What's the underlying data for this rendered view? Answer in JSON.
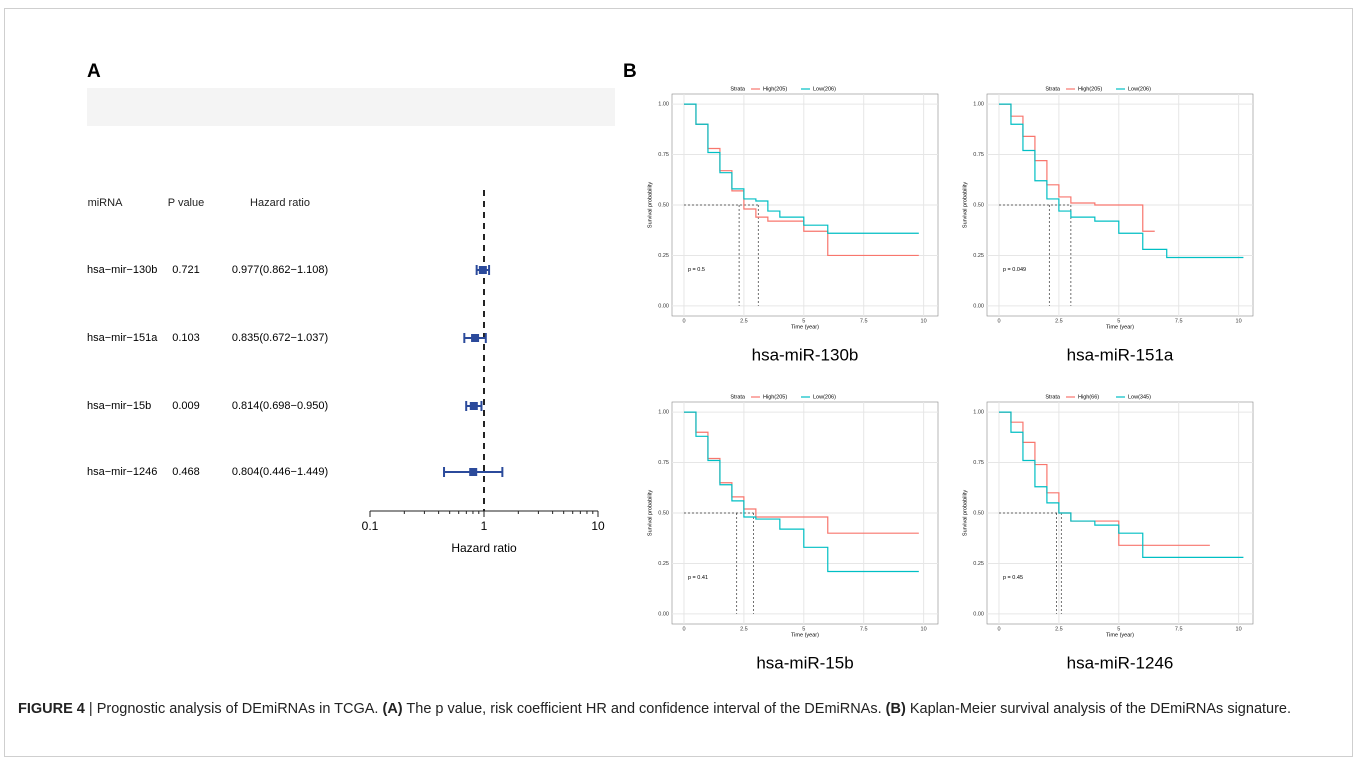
{
  "chart_data": [
    {
      "type": "forest",
      "panel_label": "A",
      "columns": [
        "miRNA",
        "P value",
        "Hazard ratio"
      ],
      "categories": [
        "hsa−mir−130b",
        "hsa−mir−151a",
        "hsa−mir−15b",
        "hsa−mir−1246"
      ],
      "p_values": [
        0.721,
        0.103,
        0.009,
        0.468
      ],
      "hr_text": [
        "0.977(0.862−1.108)",
        "0.835(0.672−1.037)",
        "0.814(0.698−0.950)",
        "0.804(0.446−1.449)"
      ],
      "values": [
        0.977,
        0.835,
        0.814,
        0.804
      ],
      "lower": [
        0.862,
        0.672,
        0.698,
        0.446
      ],
      "upper": [
        1.108,
        1.037,
        0.95,
        1.449
      ],
      "color": "#2b4a9b",
      "log_scale": true,
      "xlim": [
        0.1,
        10
      ],
      "xticks": [
        0.1,
        1,
        10
      ],
      "reference_line": 1,
      "xlabel": "Hazard ratio"
    },
    {
      "type": "km",
      "panel_label": "B",
      "title": "hsa-miR-130b",
      "legend_title": "Strata",
      "p_text": "p = 0.5",
      "xlabel": "Time (year)",
      "ylabel": "Survival probability",
      "x": [
        0,
        0.5,
        1,
        1.5,
        2,
        2.5,
        3,
        3.5,
        4,
        5,
        6,
        6.5,
        9.8
      ],
      "series": [
        {
          "name": "High(205)",
          "color": "#f8766d",
          "median": 2.3,
          "values": [
            1,
            0.9,
            0.78,
            0.67,
            0.57,
            0.48,
            0.44,
            0.42,
            0.42,
            0.37,
            0.25,
            0.25,
            0.25
          ]
        },
        {
          "name": "Low(206)",
          "color": "#00bfc4",
          "median": 3.1,
          "values": [
            1,
            0.9,
            0.76,
            0.66,
            0.58,
            0.53,
            0.52,
            0.47,
            0.44,
            0.4,
            0.36,
            0.36,
            0.36
          ]
        }
      ],
      "xlim": [
        -0.5,
        10.6
      ],
      "xticks": [
        0,
        2.5,
        5,
        7.5,
        10
      ],
      "ylim": [
        -0.05,
        1.05
      ],
      "yticks": [
        {
          "value": 0,
          "label": "0.00"
        },
        {
          "value": 0.25,
          "label": "0.25"
        },
        {
          "value": 0.5,
          "label": "0.50"
        },
        {
          "value": 0.75,
          "label": "0.75"
        },
        {
          "value": 1,
          "label": "1.00"
        }
      ],
      "grid": true
    },
    {
      "type": "km",
      "title": "hsa-miR-151a",
      "legend_title": "Strata",
      "p_text": "p = 0.049",
      "xlabel": "Time (year)",
      "ylabel": "Survival probability",
      "x": [
        0,
        0.5,
        1,
        1.5,
        2,
        2.5,
        3,
        4,
        5,
        6,
        6.5,
        7,
        8,
        10.2
      ],
      "series": [
        {
          "name": "High(205)",
          "color": "#f8766d",
          "median": 3.0,
          "values": [
            1,
            0.94,
            0.84,
            0.72,
            0.6,
            0.54,
            0.51,
            0.5,
            0.5,
            0.37,
            0.37,
            null,
            null,
            null
          ]
        },
        {
          "name": "Low(206)",
          "color": "#00bfc4",
          "median": 2.1,
          "values": [
            1,
            0.9,
            0.77,
            0.62,
            0.53,
            0.47,
            0.44,
            0.42,
            0.36,
            0.28,
            0.28,
            0.24,
            0.24,
            0.24
          ]
        }
      ],
      "xlim": [
        -0.5,
        10.6
      ],
      "xticks": [
        0,
        2.5,
        5,
        7.5,
        10
      ],
      "ylim": [
        -0.05,
        1.05
      ],
      "yticks": [
        {
          "value": 0,
          "label": "0.00"
        },
        {
          "value": 0.25,
          "label": "0.25"
        },
        {
          "value": 0.5,
          "label": "0.50"
        },
        {
          "value": 0.75,
          "label": "0.75"
        },
        {
          "value": 1,
          "label": "1.00"
        }
      ],
      "grid": true
    },
    {
      "type": "km",
      "title": "hsa-miR-15b",
      "legend_title": "Strata",
      "p_text": "p = 0.41",
      "xlabel": "Time (year)",
      "ylabel": "Survival probability",
      "x": [
        0,
        0.5,
        1,
        1.5,
        2,
        2.5,
        3,
        4,
        5,
        6,
        7,
        8,
        9.8
      ],
      "series": [
        {
          "name": "High(205)",
          "color": "#f8766d",
          "median": 2.9,
          "values": [
            1,
            0.9,
            0.77,
            0.65,
            0.58,
            0.52,
            0.48,
            0.48,
            0.48,
            0.4,
            0.4,
            0.4,
            0.4
          ]
        },
        {
          "name": "Low(206)",
          "color": "#00bfc4",
          "median": 2.2,
          "values": [
            1,
            0.88,
            0.76,
            0.64,
            0.56,
            0.48,
            0.47,
            0.42,
            0.33,
            0.21,
            0.21,
            0.21,
            0.21
          ]
        }
      ],
      "xlim": [
        -0.5,
        10.6
      ],
      "xticks": [
        0,
        2.5,
        5,
        7.5,
        10
      ],
      "ylim": [
        -0.05,
        1.05
      ],
      "yticks": [
        {
          "value": 0,
          "label": "0.00"
        },
        {
          "value": 0.25,
          "label": "0.25"
        },
        {
          "value": 0.5,
          "label": "0.50"
        },
        {
          "value": 0.75,
          "label": "0.75"
        },
        {
          "value": 1,
          "label": "1.00"
        }
      ],
      "grid": true
    },
    {
      "type": "km",
      "title": "hsa-miR-1246",
      "legend_title": "Strata",
      "p_text": "p = 0.45",
      "xlabel": "Time (year)",
      "ylabel": "Survival probability",
      "x": [
        0,
        0.5,
        1,
        1.5,
        2,
        2.5,
        3,
        4,
        5,
        6,
        7,
        8.8,
        10.2
      ],
      "series": [
        {
          "name": "High(66)",
          "color": "#f8766d",
          "median": 2.6,
          "values": [
            1,
            0.95,
            0.85,
            0.74,
            0.6,
            0.5,
            0.46,
            0.46,
            0.34,
            0.34,
            0.34,
            0.34,
            null
          ]
        },
        {
          "name": "Low(345)",
          "color": "#00bfc4",
          "median": 2.4,
          "values": [
            1,
            0.9,
            0.76,
            0.63,
            0.55,
            0.5,
            0.46,
            0.44,
            0.4,
            0.28,
            0.28,
            0.28,
            0.28
          ]
        }
      ],
      "xlim": [
        -0.5,
        10.6
      ],
      "xticks": [
        0,
        2.5,
        5,
        7.5,
        10
      ],
      "ylim": [
        -0.05,
        1.05
      ],
      "yticks": [
        {
          "value": 0,
          "label": "0.00"
        },
        {
          "value": 0.25,
          "label": "0.25"
        },
        {
          "value": 0.5,
          "label": "0.50"
        },
        {
          "value": 0.75,
          "label": "0.75"
        },
        {
          "value": 1,
          "label": "1.00"
        }
      ],
      "grid": true
    }
  ],
  "caption": {
    "label": "FIGURE 4",
    "parts": [
      " | Prognostic analysis of DEmiRNAs in TCGA. ",
      "(A)",
      " The p value, risk coefficient HR and confidence interval of the DEmiRNAs. ",
      "(B)",
      " Kaplan-Meier survival analysis of the DEmiRNAs signature."
    ]
  }
}
